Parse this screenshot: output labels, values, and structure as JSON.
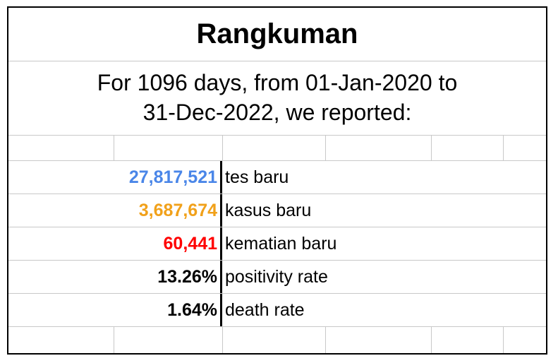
{
  "title": "Rangkuman",
  "subtitle": {
    "line1": "For 1096 days, from 01-Jan-2020 to",
    "line2": "31-Dec-2022, we reported:"
  },
  "colors": {
    "tests": "#4a86e8",
    "cases": "#f1a11a",
    "deaths": "#ff0000",
    "default": "#000000"
  },
  "stats": [
    {
      "value": "27,817,521",
      "label": "tes baru"
    },
    {
      "value": "3,687,674",
      "label": "kasus baru"
    },
    {
      "value": "60,441",
      "label": "kematian baru"
    },
    {
      "value": "13.26%",
      "label": "positivity rate"
    },
    {
      "value": "1.64%",
      "label": "death rate"
    }
  ]
}
